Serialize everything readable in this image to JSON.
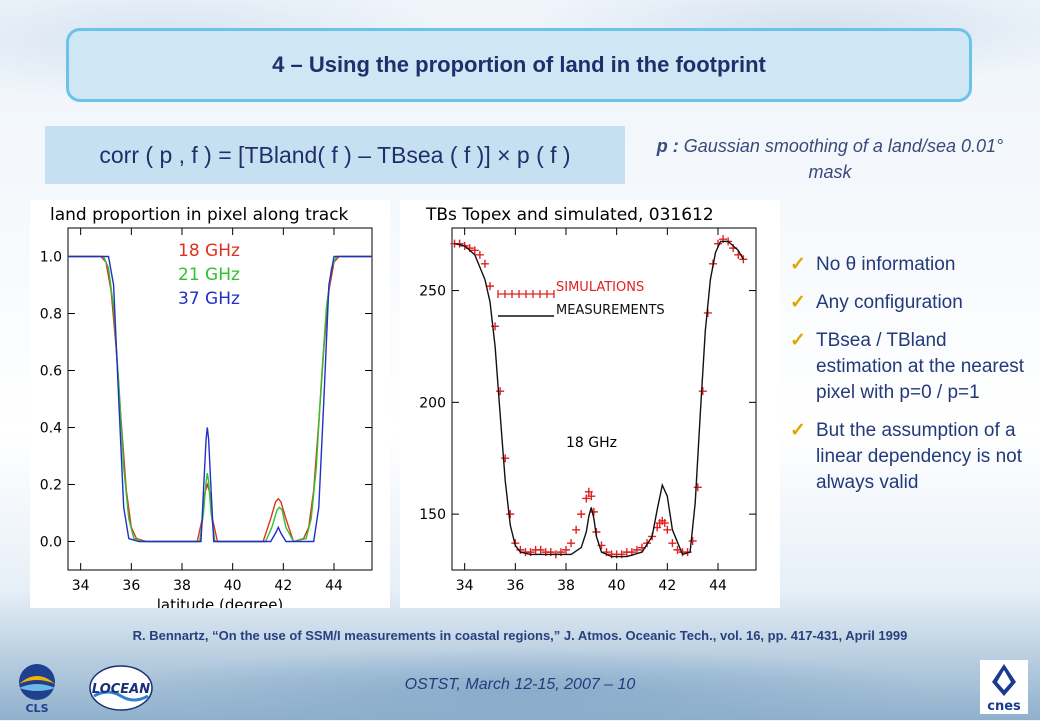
{
  "slide": {
    "title": "4 – Using the proportion of land in the footprint",
    "formula": "corr ( p , f ) = [TBland( f ) – TBsea ( f )] × p ( f )",
    "note_lead": "p :",
    "note_text": " Gaussian smoothing of a land/sea 0.01° mask",
    "bullets": [
      "No θ information",
      "Any configuration",
      "TBsea / TBland estimation at the nearest pixel with p=0 / p=1",
      "But the assumption of a linear dependency is not always valid"
    ],
    "reference": "R. Bennartz, “On the use of SSM/I measurements in coastal regions,” J. Atmos. Oceanic Tech., vol. 16, pp. 417-431, April 1999",
    "footer": "OSTST, March 12-15, 2007 – 10",
    "logos": {
      "cls": "CLS",
      "locean": "LOCEAN",
      "cnes": "cnes"
    }
  },
  "chart_data": [
    {
      "type": "line",
      "title": "land proportion in pixel along track",
      "xlabel": "latitude (degree)",
      "ylabel": "",
      "xlim": [
        33.5,
        45.5
      ],
      "ylim": [
        -0.1,
        1.1
      ],
      "xticks": [
        34,
        36,
        38,
        40,
        42,
        44
      ],
      "yticks": [
        0.0,
        0.2,
        0.4,
        0.6,
        0.8,
        1.0
      ],
      "ytick_labels": [
        "0.0",
        "0.2",
        "0.4",
        "0.6",
        "0.8",
        "1.0"
      ],
      "legend_placement": "top-center",
      "series": [
        {
          "name": "18 GHz",
          "color": "#e03020",
          "x": [
            33.5,
            34.8,
            35.0,
            35.2,
            35.4,
            35.6,
            35.8,
            36.0,
            36.2,
            36.6,
            38.6,
            38.8,
            38.9,
            39.0,
            39.1,
            39.2,
            39.4,
            41.2,
            41.5,
            41.7,
            41.8,
            41.9,
            42.1,
            42.4,
            42.8,
            43.0,
            43.2,
            43.4,
            43.6,
            43.8,
            44.0,
            44.2,
            45.5
          ],
          "y": [
            1.0,
            1.0,
            0.98,
            0.88,
            0.68,
            0.42,
            0.18,
            0.05,
            0.01,
            0.0,
            0.0,
            0.08,
            0.17,
            0.2,
            0.17,
            0.08,
            0.0,
            0.0,
            0.08,
            0.14,
            0.15,
            0.14,
            0.08,
            0.0,
            0.01,
            0.05,
            0.18,
            0.42,
            0.68,
            0.88,
            0.98,
            1.0,
            1.0
          ]
        },
        {
          "name": "21 GHz",
          "color": "#30c030",
          "x": [
            33.5,
            34.9,
            35.1,
            35.3,
            35.5,
            35.7,
            35.9,
            36.1,
            36.5,
            38.7,
            38.85,
            38.95,
            39.0,
            39.05,
            39.15,
            39.3,
            41.3,
            41.55,
            41.75,
            41.85,
            41.95,
            42.1,
            42.4,
            42.9,
            43.1,
            43.3,
            43.5,
            43.7,
            43.9,
            44.1,
            45.5
          ],
          "y": [
            1.0,
            1.0,
            0.96,
            0.82,
            0.56,
            0.26,
            0.08,
            0.01,
            0.0,
            0.0,
            0.1,
            0.21,
            0.24,
            0.21,
            0.1,
            0.0,
            0.0,
            0.05,
            0.11,
            0.12,
            0.11,
            0.05,
            0.0,
            0.01,
            0.08,
            0.26,
            0.56,
            0.82,
            0.96,
            1.0,
            1.0
          ]
        },
        {
          "name": "37 GHz",
          "color": "#2030c8",
          "x": [
            33.5,
            35.1,
            35.3,
            35.5,
            35.7,
            35.9,
            36.3,
            38.75,
            38.85,
            38.95,
            39.0,
            39.05,
            39.15,
            39.25,
            41.5,
            41.7,
            41.8,
            41.9,
            42.1,
            43.2,
            43.4,
            43.6,
            43.8,
            44.0,
            45.5
          ],
          "y": [
            1.0,
            1.0,
            0.9,
            0.5,
            0.12,
            0.01,
            0.0,
            0.0,
            0.18,
            0.36,
            0.4,
            0.36,
            0.18,
            0.0,
            0.0,
            0.03,
            0.05,
            0.03,
            0.0,
            0.0,
            0.12,
            0.5,
            0.9,
            1.0,
            1.0
          ]
        }
      ]
    },
    {
      "type": "line",
      "title": "TBs Topex and simulated, 031612",
      "xlabel": "",
      "ylabel": "",
      "xlim": [
        33.5,
        45.5
      ],
      "ylim": [
        125,
        278
      ],
      "xticks": [
        34,
        36,
        38,
        40,
        42,
        44
      ],
      "yticks": [
        150,
        200,
        250
      ],
      "annotation": "18 GHz",
      "annotation_at": [
        38.0,
        180
      ],
      "legend_placement": "top-center",
      "series": [
        {
          "name": "SIMULATIONS",
          "color": "#e02020",
          "marker": "+",
          "x": [
            33.6,
            33.8,
            34.0,
            34.2,
            34.4,
            34.6,
            34.8,
            35.0,
            35.2,
            35.4,
            35.6,
            35.8,
            36.0,
            36.2,
            36.4,
            36.6,
            36.8,
            37.0,
            37.2,
            37.4,
            37.6,
            37.8,
            38.0,
            38.2,
            38.4,
            38.6,
            38.8,
            38.9,
            39.0,
            39.1,
            39.2,
            39.4,
            39.6,
            39.8,
            40.0,
            40.2,
            40.4,
            40.6,
            40.8,
            41.0,
            41.2,
            41.4,
            41.6,
            41.7,
            41.8,
            41.9,
            42.0,
            42.2,
            42.4,
            42.6,
            42.8,
            43.0,
            43.2,
            43.4,
            43.6,
            43.8,
            44.0,
            44.2,
            44.4,
            44.6,
            44.8,
            45.0
          ],
          "y": [
            271,
            271,
            270,
            269,
            268,
            266,
            262,
            252,
            234,
            205,
            175,
            150,
            137,
            134,
            133,
            133,
            134,
            134,
            133,
            133,
            132,
            133,
            134,
            137,
            143,
            150,
            157,
            160,
            158,
            151,
            142,
            136,
            133,
            132,
            132,
            132,
            133,
            133,
            134,
            135,
            137,
            140,
            144,
            146,
            147,
            146,
            143,
            137,
            134,
            133,
            133,
            138,
            162,
            205,
            240,
            262,
            271,
            273,
            272,
            269,
            266,
            264
          ]
        },
        {
          "name": "MEASUREMENTS",
          "color": "#111111",
          "marker": "",
          "x": [
            33.6,
            34.0,
            34.4,
            34.8,
            35.0,
            35.2,
            35.4,
            35.6,
            35.8,
            36.0,
            36.2,
            36.6,
            37.0,
            37.4,
            37.8,
            38.2,
            38.6,
            38.8,
            38.9,
            39.0,
            39.1,
            39.2,
            39.4,
            39.8,
            40.4,
            41.0,
            41.4,
            41.6,
            41.8,
            42.0,
            42.2,
            42.6,
            42.9,
            43.1,
            43.3,
            43.5,
            43.7,
            43.9,
            44.1,
            44.4,
            44.8,
            45.0
          ],
          "y": [
            271,
            270,
            266,
            255,
            245,
            225,
            195,
            165,
            145,
            136,
            133,
            132,
            132,
            132,
            132,
            132,
            135,
            142,
            149,
            153,
            148,
            140,
            133,
            131,
            131,
            133,
            140,
            152,
            163,
            158,
            143,
            132,
            133,
            155,
            195,
            232,
            255,
            267,
            272,
            272,
            268,
            264
          ]
        }
      ]
    }
  ]
}
